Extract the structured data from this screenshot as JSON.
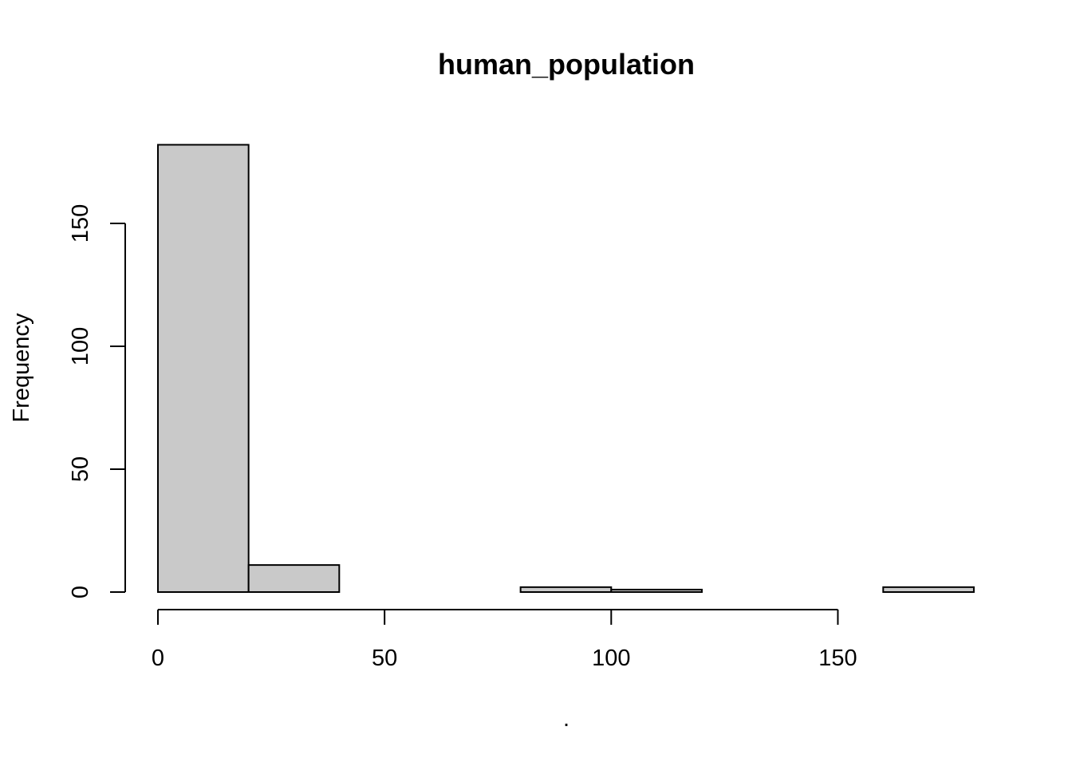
{
  "chart_data": {
    "type": "bar",
    "title": "human_population",
    "xlabel": ".",
    "ylabel": "Frequency",
    "bins": [
      {
        "start": 0,
        "end": 20,
        "count": 182
      },
      {
        "start": 20,
        "end": 40,
        "count": 11
      },
      {
        "start": 40,
        "end": 60,
        "count": 0
      },
      {
        "start": 60,
        "end": 80,
        "count": 0
      },
      {
        "start": 80,
        "end": 100,
        "count": 2
      },
      {
        "start": 100,
        "end": 120,
        "count": 1
      },
      {
        "start": 120,
        "end": 140,
        "count": 0
      },
      {
        "start": 140,
        "end": 160,
        "count": 0
      },
      {
        "start": 160,
        "end": 180,
        "count": 2
      }
    ],
    "x_ticks": [
      0,
      50,
      100,
      150
    ],
    "y_ticks": [
      0,
      50,
      100,
      150
    ],
    "xlim": [
      0,
      180
    ],
    "ylim": [
      0,
      182
    ],
    "grid": false,
    "bar_color": "#c9c9c9"
  }
}
